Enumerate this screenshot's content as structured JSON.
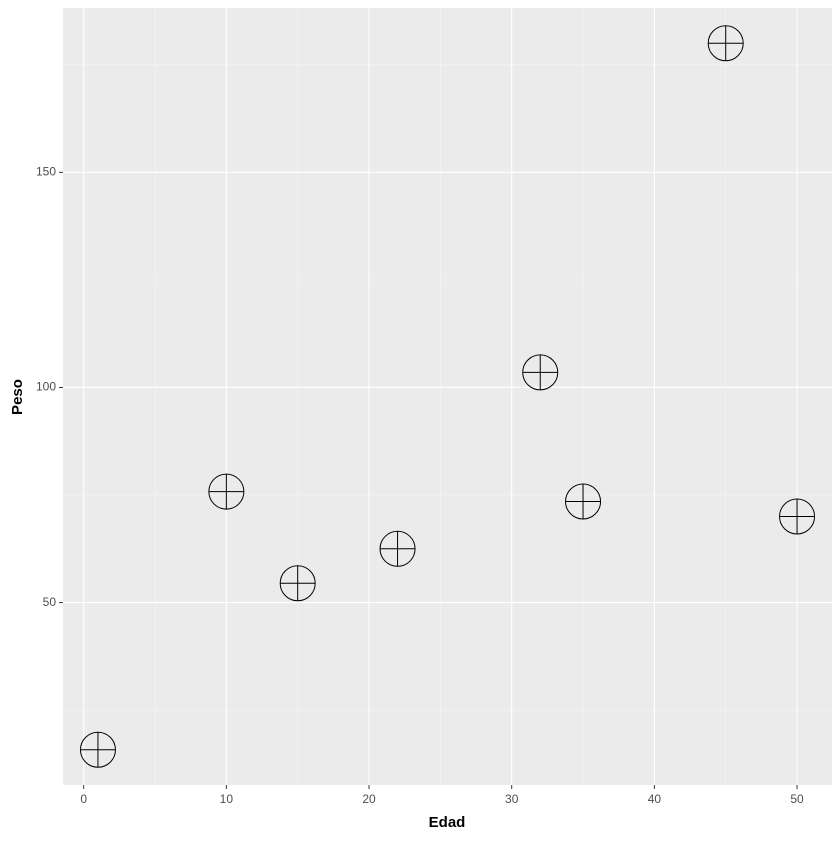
{
  "chart_data": {
    "type": "scatter",
    "x_label": "Edad",
    "y_label": "Peso",
    "x": [
      1,
      10,
      15,
      22,
      32,
      35,
      45,
      50
    ],
    "values": [
      15.8,
      75.8,
      54.5,
      62.5,
      103.5,
      73.5,
      180,
      70
    ],
    "color": "#000000",
    "xlim": [
      -1.45,
      52.45
    ],
    "xticks": [
      0,
      10,
      20,
      30,
      40,
      50
    ],
    "ylim": [
      7.6,
      188.2
    ],
    "yticks": [
      50,
      100,
      150
    ],
    "x_minor_grid": [
      5,
      15,
      25,
      35,
      45
    ],
    "y_minor_grid": [
      25,
      75,
      125,
      175
    ],
    "grid": true
  }
}
